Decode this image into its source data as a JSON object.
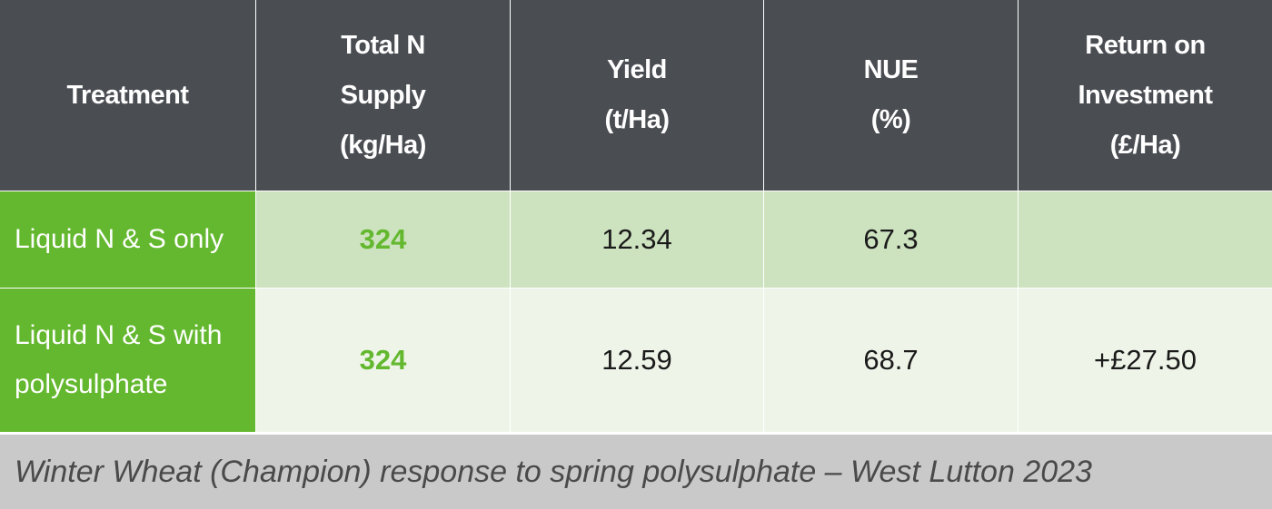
{
  "table": {
    "header": [
      [
        "Treatment"
      ],
      [
        "Total N",
        "Supply",
        "(kg/Ha)"
      ],
      [
        "Yield",
        "(t/Ha)"
      ],
      [
        "NUE",
        "(%)"
      ],
      [
        "Return on",
        "Investment",
        "(£/Ha)"
      ]
    ],
    "rows": [
      [
        "Liquid N & S only",
        "324",
        "12.34",
        "67.3",
        null
      ],
      [
        "Liquid N & S with polysulphate",
        "324",
        "12.59",
        "68.7",
        "+£27.50"
      ]
    ]
  },
  "caption": "Winter Wheat (Champion) response to spring polysulphate – West Lutton 2023"
}
